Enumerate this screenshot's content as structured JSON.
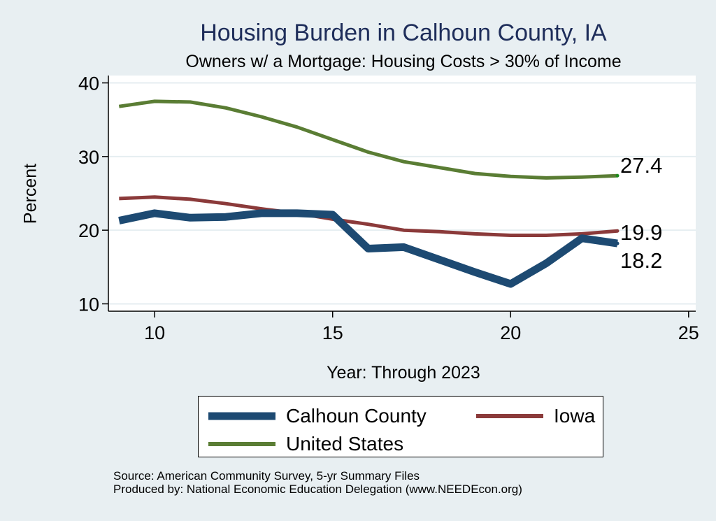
{
  "chart_data": {
    "type": "line",
    "title": "Housing Burden in Calhoun County, IA",
    "subtitle": "Owners w/ a Mortgage: Housing Costs > 30% of Income",
    "xlabel": "Year: Through 2023",
    "ylabel": "Percent",
    "xlim": [
      8.7,
      25.2
    ],
    "ylim": [
      9,
      41
    ],
    "x_ticks": [
      10,
      15,
      20,
      25
    ],
    "y_ticks": [
      10,
      20,
      30,
      40
    ],
    "x": [
      9,
      10,
      11,
      12,
      13,
      14,
      15,
      16,
      17,
      18,
      19,
      20,
      21,
      22,
      23
    ],
    "series": [
      {
        "name": "Calhoun County",
        "color": "#1d4a72",
        "values": [
          21.3,
          22.3,
          21.7,
          21.8,
          22.3,
          22.3,
          22.1,
          17.5,
          17.7,
          16.0,
          14.3,
          12.7,
          15.5,
          18.9,
          18.2
        ]
      },
      {
        "name": "Iowa",
        "color": "#8b3a3a",
        "values": [
          24.3,
          24.5,
          24.2,
          23.6,
          22.9,
          22.3,
          21.5,
          20.8,
          20.0,
          19.8,
          19.5,
          19.3,
          19.3,
          19.5,
          19.9
        ]
      },
      {
        "name": "United States",
        "color": "#5a7d34",
        "values": [
          36.8,
          37.5,
          37.4,
          36.6,
          35.4,
          34.0,
          32.3,
          30.6,
          29.3,
          28.5,
          27.7,
          27.3,
          27.1,
          27.2,
          27.4
        ]
      }
    ],
    "end_labels": [
      {
        "series": "United States",
        "text": "27.4"
      },
      {
        "series": "Iowa",
        "text": "19.9"
      },
      {
        "series": "Calhoun County",
        "text": "18.2"
      }
    ],
    "legend": [
      {
        "name": "Calhoun County",
        "color": "#1d4a72"
      },
      {
        "name": "Iowa",
        "color": "#8b3a3a"
      },
      {
        "name": "United States",
        "color": "#5a7d34"
      }
    ],
    "grid": true,
    "legend_position": "bottom"
  },
  "source_line1": "Source: American Community Survey, 5-yr Summary Files",
  "source_line2": "Produced by: National Economic Education Delegation (www.NEEDEcon.org)"
}
